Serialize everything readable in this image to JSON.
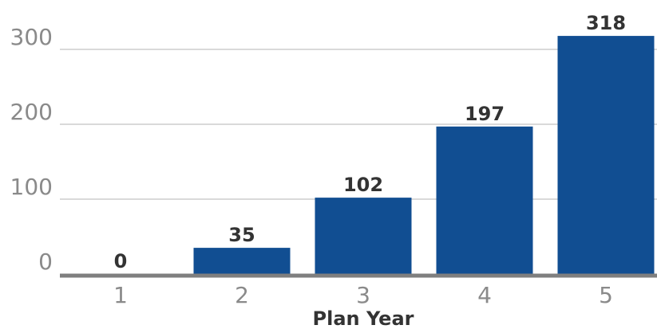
{
  "chart_data": {
    "type": "bar",
    "categories": [
      "1",
      "2",
      "3",
      "4",
      "5"
    ],
    "values": [
      0,
      35,
      102,
      197,
      318
    ],
    "data_labels": [
      "0",
      "35",
      "102",
      "197",
      "318"
    ],
    "xlabel": "Plan Year",
    "ylabel": "",
    "ylim": [
      0,
      300
    ],
    "yticks": [
      0,
      100,
      200,
      300
    ],
    "ytick_labels": [
      "0",
      "100",
      "200",
      "300"
    ],
    "grid": true,
    "legend": "none",
    "colors": {
      "bar": "#114e92",
      "grid": "#d9d9d9",
      "axis": "#7f7f7f"
    }
  }
}
